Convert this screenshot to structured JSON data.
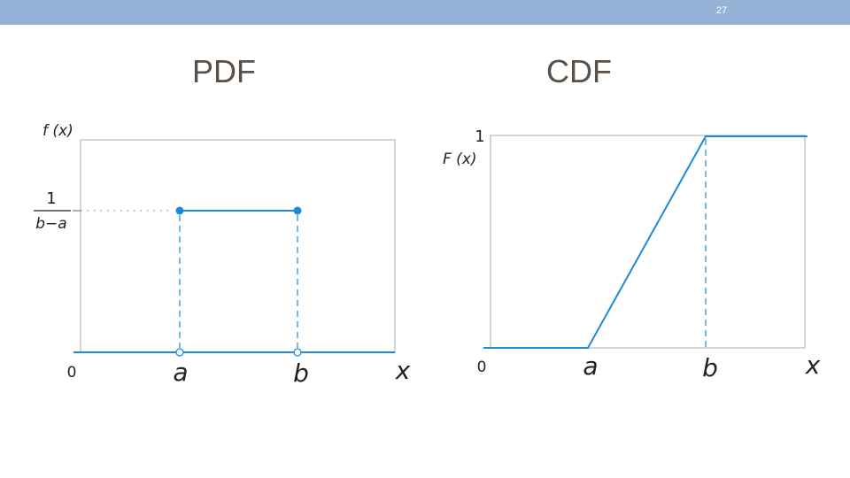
{
  "slide": {
    "number": "27"
  },
  "chart_data": [
    {
      "type": "line",
      "title": "PDF",
      "ylabel": "f (x)",
      "xlabel": "x",
      "origin_label": "0",
      "x_ticks": [
        "a",
        "b"
      ],
      "y_tick": {
        "numerator": "1",
        "denominator": "b−a"
      },
      "series": [
        {
          "x": [
            "x_min",
            "a",
            "a",
            "b",
            "b",
            "x_max"
          ],
          "y": [
            0,
            0,
            1,
            1,
            0,
            0
          ]
        }
      ],
      "notes": "uniform density: 1/(b−a) on [a, b], 0 elsewhere; filled dots at (a,1/(b−a)) and (b,1/(b−a)); open dots at (a,0) and (b,0); dashed verticals at a and b",
      "color": "#1c8ad8"
    },
    {
      "type": "line",
      "title": "CDF",
      "ylabel": "F (x)",
      "xlabel": "x",
      "origin_label": "0",
      "x_ticks": [
        "a",
        "b"
      ],
      "y_tick": "1",
      "series": [
        {
          "x": [
            "x_min",
            "a",
            "b",
            "x_max"
          ],
          "y": [
            0,
            0,
            1,
            1
          ]
        }
      ],
      "notes": "uniform CDF: 0 before a, linear rise from a to b, 1 after b; dashed vertical at b",
      "color": "#1c8ad8"
    }
  ]
}
